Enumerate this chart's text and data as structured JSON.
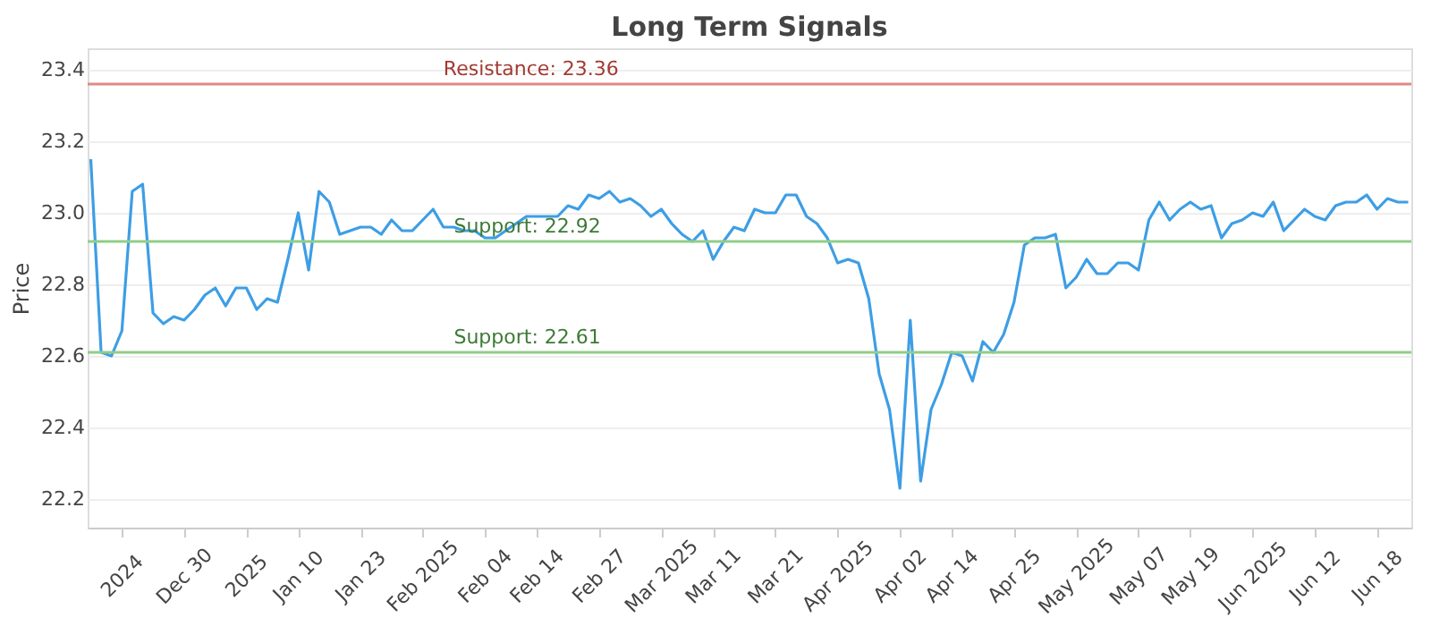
{
  "chart_data": {
    "type": "line",
    "title": "Long Term Signals",
    "ylabel": "Price",
    "categories": [
      null,
      null,
      null,
      "2024",
      null,
      null,
      null,
      null,
      null,
      "Dec 30",
      null,
      null,
      null,
      null,
      null,
      "2025",
      null,
      null,
      null,
      null,
      "Jan 10",
      null,
      null,
      null,
      null,
      null,
      "Jan 23",
      null,
      null,
      null,
      null,
      null,
      "Feb 2025",
      null,
      null,
      null,
      null,
      null,
      "Feb 04",
      null,
      null,
      null,
      null,
      "Feb 14",
      null,
      null,
      null,
      null,
      null,
      "Feb 27",
      null,
      null,
      null,
      null,
      null,
      "Mar 2025",
      null,
      null,
      null,
      null,
      "Mar 11",
      null,
      null,
      null,
      null,
      null,
      "Mar 21",
      null,
      null,
      null,
      null,
      null,
      "Apr 2025",
      null,
      null,
      null,
      null,
      null,
      "Apr 02",
      null,
      null,
      null,
      null,
      "Apr 14",
      null,
      null,
      null,
      null,
      null,
      "Apr 25",
      null,
      null,
      null,
      null,
      null,
      "May 2025",
      null,
      null,
      null,
      null,
      null,
      "May 07",
      null,
      null,
      null,
      null,
      "May 19",
      null,
      null,
      null,
      null,
      null,
      "Jun 2025",
      null,
      null,
      null,
      null,
      null,
      "Jun 12",
      null,
      null,
      null,
      null,
      null,
      "Jun 18",
      null,
      null,
      null
    ],
    "series": [
      {
        "color": "#3d9ee5",
        "values": [
          23.15,
          22.61,
          22.6,
          22.67,
          23.06,
          23.08,
          22.72,
          22.69,
          22.71,
          22.7,
          22.73,
          22.77,
          22.79,
          22.74,
          22.79,
          22.79,
          22.73,
          22.76,
          22.75,
          22.87,
          23.0,
          22.84,
          23.06,
          23.03,
          22.94,
          22.95,
          22.96,
          22.96,
          22.94,
          22.98,
          22.95,
          22.95,
          22.98,
          23.01,
          22.96,
          22.96,
          22.95,
          22.95,
          22.93,
          22.93,
          22.95,
          22.97,
          22.99,
          22.99,
          22.99,
          22.99,
          23.02,
          23.01,
          23.05,
          23.04,
          23.06,
          23.03,
          23.04,
          23.02,
          22.99,
          23.01,
          22.97,
          22.94,
          22.92,
          22.95,
          22.87,
          22.92,
          22.96,
          22.95,
          23.01,
          23.0,
          23.0,
          23.05,
          23.05,
          22.99,
          22.97,
          22.93,
          22.86,
          22.87,
          22.86,
          22.76,
          22.55,
          22.45,
          22.23,
          22.7,
          22.25,
          22.45,
          22.52,
          22.61,
          22.6,
          22.53,
          22.64,
          22.61,
          22.66,
          22.75,
          22.91,
          22.93,
          22.93,
          22.94,
          22.79,
          22.82,
          22.87,
          22.83,
          22.83,
          22.86,
          22.86,
          22.84,
          22.98,
          23.03,
          22.98,
          23.01,
          23.03,
          23.01,
          23.02,
          22.93,
          22.97,
          22.98,
          23.0,
          22.99,
          23.03,
          22.95,
          22.98,
          23.01,
          22.99,
          22.98,
          23.02,
          23.03,
          23.03,
          23.05,
          23.01,
          23.04,
          23.03,
          23.03
        ]
      }
    ],
    "ylim": [
      22.12,
      23.46
    ],
    "yticks": [
      22.2,
      22.4,
      22.6,
      22.8,
      {
        "value": 23,
        "label": "23.0"
      },
      23.2,
      23.4
    ],
    "grid": "y",
    "ref_lines": [
      {
        "axis": "y",
        "value": 23.36,
        "label": "Resistance: 23.36",
        "color": "#e08a85"
      },
      {
        "axis": "y",
        "value": 22.92,
        "label": "Support: 22.92",
        "color": "#8fce87"
      },
      {
        "axis": "y",
        "value": 22.61,
        "label": "Support: 22.61",
        "color": "#8fce87"
      }
    ]
  }
}
